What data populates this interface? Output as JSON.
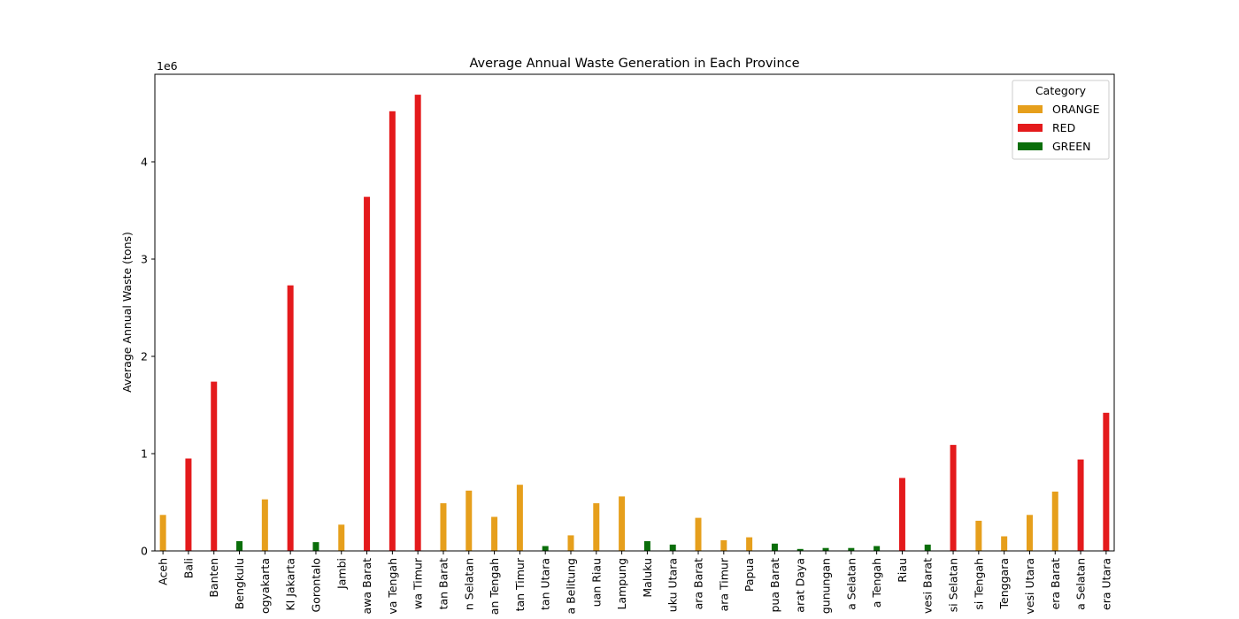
{
  "chart_data": {
    "type": "bar",
    "title": "Average Annual Waste Generation in Each Province",
    "xlabel": "",
    "ylabel": "Average Annual Waste (tons)",
    "y_multiplier_label": "1e6",
    "ylim": [
      0,
      4.9
    ],
    "yticks": [
      "0",
      "1",
      "2",
      "3",
      "4"
    ],
    "legend": {
      "title": "Category",
      "placement": "top-right",
      "entries": [
        {
          "label": "ORANGE",
          "color": "#e69f1c"
        },
        {
          "label": "RED",
          "color": "#e41a1c"
        },
        {
          "label": "GREEN",
          "color": "#0a6e0a"
        }
      ]
    },
    "categories": [
      "Aceh",
      "Bali",
      "Banten",
      "Bengkulu",
      "ogyakarta",
      "KI Jakarta",
      "Gorontalo",
      "Jambi",
      "awa Barat",
      "va Tengah",
      "wa Timur",
      "tan Barat",
      "n Selatan",
      "an Tengah",
      "tan Timur",
      "tan Utara",
      "a Belitung",
      "uan Riau",
      "Lampung",
      "Maluku",
      "uku Utara",
      "ara Barat",
      "ara Timur",
      "Papua",
      "pua Barat",
      "arat Daya",
      "gunungan",
      "a Selatan",
      "a Tengah",
      "Riau",
      "vesi Barat",
      "si Selatan",
      "si Tengah",
      "Tenggara",
      "vesi Utara",
      "era Barat",
      "a Selatan",
      "era Utara"
    ],
    "series": [
      {
        "name": "ORANGE",
        "color": "#e69f1c",
        "offset": -1,
        "values": [
          0.37,
          null,
          null,
          null,
          0.53,
          null,
          null,
          0.27,
          null,
          null,
          null,
          0.49,
          0.62,
          0.35,
          0.68,
          null,
          0.16,
          0.49,
          0.56,
          null,
          null,
          0.34,
          0.11,
          0.14,
          null,
          null,
          null,
          null,
          null,
          null,
          null,
          null,
          0.31,
          0.15,
          0.37,
          0.61,
          null,
          null
        ]
      },
      {
        "name": "RED",
        "color": "#e41a1c",
        "offset": 0,
        "values": [
          null,
          0.95,
          1.74,
          null,
          null,
          2.73,
          null,
          null,
          3.64,
          4.52,
          4.69,
          null,
          null,
          null,
          null,
          null,
          null,
          null,
          null,
          null,
          null,
          null,
          null,
          null,
          null,
          null,
          null,
          null,
          null,
          0.75,
          null,
          1.09,
          null,
          null,
          null,
          null,
          0.94,
          1.42
        ]
      },
      {
        "name": "GREEN",
        "color": "#0a6e0a",
        "offset": 1,
        "values": [
          null,
          null,
          null,
          0.1,
          null,
          null,
          0.09,
          null,
          null,
          null,
          null,
          null,
          null,
          null,
          null,
          0.05,
          null,
          null,
          null,
          0.1,
          0.065,
          null,
          null,
          null,
          0.075,
          0.02,
          0.03,
          0.03,
          0.05,
          null,
          0.065,
          null,
          null,
          null,
          null,
          null,
          null,
          null
        ]
      }
    ]
  }
}
